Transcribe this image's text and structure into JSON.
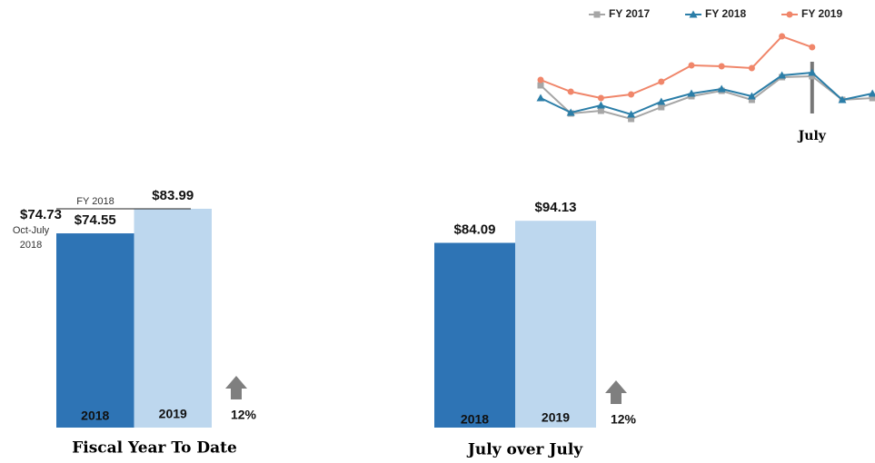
{
  "chart_data": [
    {
      "type": "line",
      "categories": [
        null,
        null,
        null,
        null,
        null,
        null,
        null,
        null,
        null,
        "July",
        null,
        null
      ],
      "marker_category": "July",
      "ylim": [
        0,
        110
      ],
      "series": [
        {
          "name": "FY 2017",
          "color": "#a6a6a6",
          "marker": "square",
          "values": [
            46,
            15,
            18,
            9,
            22,
            34,
            40,
            30,
            55,
            56,
            30,
            32
          ]
        },
        {
          "name": "FY 2018",
          "color": "#2b7ea8",
          "marker": "triangle",
          "values": [
            32,
            16,
            24,
            14,
            28,
            37,
            42,
            34,
            57,
            60,
            30,
            37
          ]
        },
        {
          "name": "FY 2019",
          "color": "#f0866a",
          "marker": "circle",
          "values": [
            52,
            39,
            32,
            36,
            50,
            68,
            67,
            65,
            100,
            88,
            null,
            null
          ]
        }
      ]
    },
    {
      "type": "bar",
      "title": "Fiscal Year To Date",
      "categories": [
        "2018",
        "2019"
      ],
      "values": [
        74.55,
        83.99
      ],
      "value_labels": [
        "$74.55",
        "$83.99"
      ],
      "colors": [
        "#2e74b5",
        "#bdd7ee"
      ],
      "ylim": [
        0,
        100
      ],
      "reference": {
        "label": "FY 2018",
        "value": 83.99
      },
      "annotations": [
        "$74.73",
        "Oct-July",
        "2018"
      ],
      "change_label": "12%"
    },
    {
      "type": "bar",
      "title": "July over July",
      "categories": [
        "2018",
        "2019"
      ],
      "values": [
        84.09,
        94.13
      ],
      "value_labels": [
        "$84.09",
        "$94.13"
      ],
      "colors": [
        "#2e74b5",
        "#bdd7ee"
      ],
      "ylim": [
        0,
        100
      ],
      "change_label": "12%"
    }
  ]
}
